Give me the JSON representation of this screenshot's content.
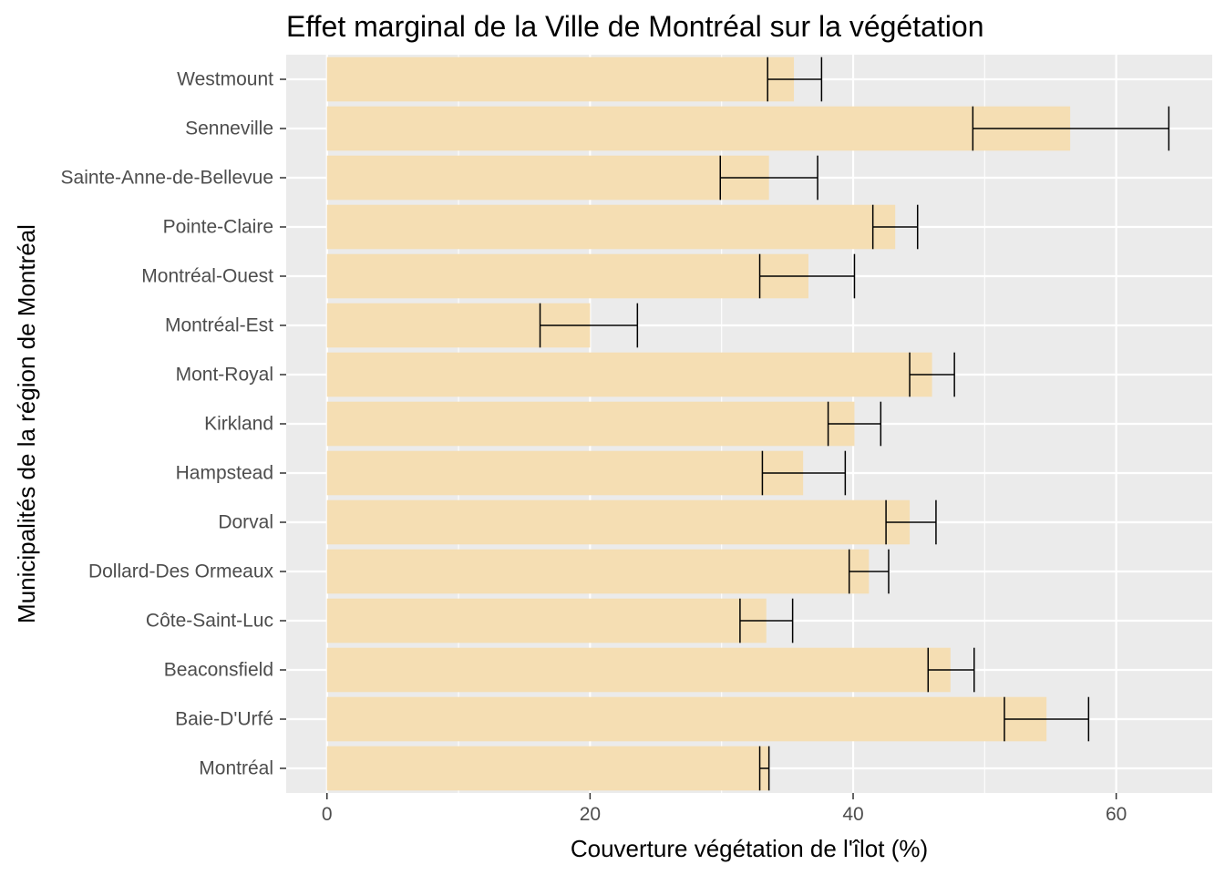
{
  "chart_data": {
    "type": "bar",
    "orientation": "horizontal",
    "title": "Effet marginal de la Ville de Montréal sur la végétation",
    "xlabel": "Couverture végétation de l'îlot (%)",
    "ylabel": "Municipalités de la région de Montréal",
    "xlim": [
      -3.1,
      67.3
    ],
    "x_ticks": [
      "0",
      "20",
      "40",
      "60"
    ],
    "grid": true,
    "legend": "none",
    "colors": {
      "panel": "#ebebeb",
      "grid": "#ffffff",
      "bar": "#f5deb3",
      "errorbar": "#000000",
      "tick": "#4d4d4d"
    },
    "categories": [
      "Montréal",
      "Baie-D'Urfé",
      "Beaconsfield",
      "Côte-Saint-Luc",
      "Dollard-Des Ormeaux",
      "Dorval",
      "Hampstead",
      "Kirkland",
      "Mont-Royal",
      "Montréal-Est",
      "Montréal-Ouest",
      "Pointe-Claire",
      "Sainte-Anne-de-Bellevue",
      "Senneville",
      "Westmount"
    ],
    "values": [
      33.6,
      54.7,
      47.4,
      33.4,
      41.2,
      44.3,
      36.2,
      40.1,
      46.0,
      20.0,
      36.6,
      43.2,
      33.6,
      56.5,
      35.5
    ],
    "error_low": [
      32.9,
      51.5,
      45.7,
      31.4,
      39.7,
      42.5,
      33.1,
      38.1,
      44.3,
      16.2,
      32.9,
      41.5,
      29.9,
      49.1,
      33.5
    ],
    "error_high": [
      33.6,
      57.9,
      49.2,
      35.4,
      42.7,
      46.3,
      39.4,
      42.1,
      47.7,
      23.6,
      40.1,
      44.9,
      37.3,
      64.0,
      37.6
    ]
  }
}
